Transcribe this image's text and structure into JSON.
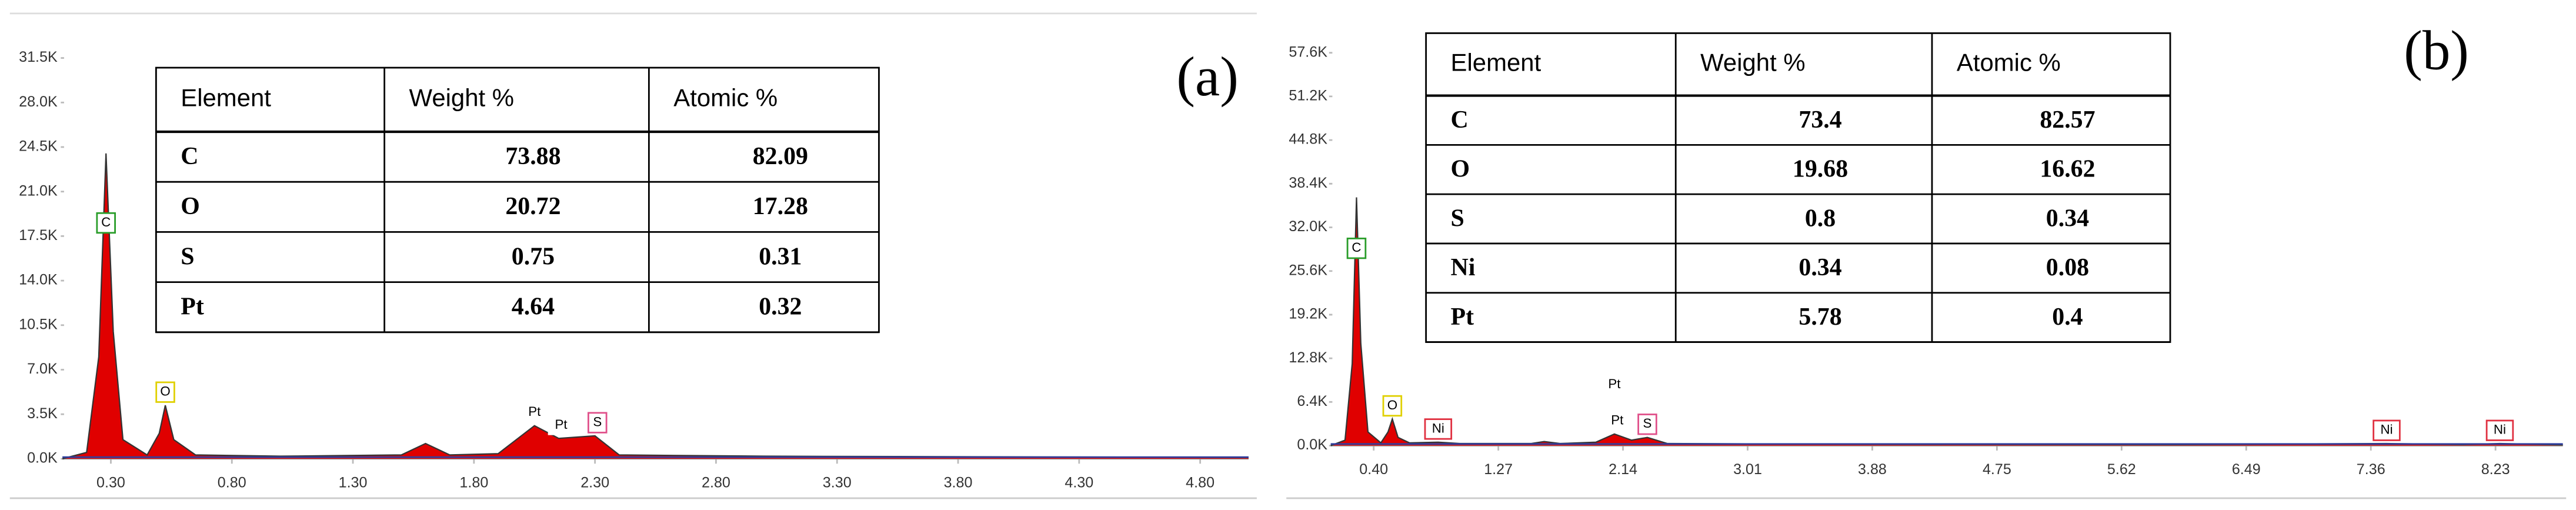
{
  "chart_data": [
    {
      "type": "area",
      "label": "(a)",
      "x": [
        0.1,
        0.2,
        0.25,
        0.28,
        0.31,
        0.35,
        0.45,
        0.5,
        0.525,
        0.56,
        0.65,
        1.0,
        1.5,
        1.6,
        1.7,
        1.9,
        2.05,
        2.15,
        2.3,
        2.4,
        3.0,
        4.0,
        5.0
      ],
      "values": [
        0,
        500,
        8000,
        24000,
        10000,
        1500,
        300,
        2000,
        4200,
        1500,
        300,
        200,
        300,
        1200,
        300,
        400,
        2600,
        1600,
        1800,
        300,
        200,
        150,
        100
      ],
      "color": "#e00000",
      "edge_color": "#333333",
      "xlim": [
        0.1,
        5.0
      ],
      "ylim": [
        0,
        35000
      ],
      "xticks": [
        {
          "value": 0.3,
          "label": "0.30"
        },
        {
          "value": 0.8,
          "label": "0.80"
        },
        {
          "value": 1.3,
          "label": "1.30"
        },
        {
          "value": 1.8,
          "label": "1.80"
        },
        {
          "value": 2.3,
          "label": "2.30"
        },
        {
          "value": 2.8,
          "label": "2.80"
        },
        {
          "value": 3.3,
          "label": "3.30"
        },
        {
          "value": 3.8,
          "label": "3.80"
        },
        {
          "value": 4.3,
          "label": "4.30"
        },
        {
          "value": 4.8,
          "label": "4.80"
        }
      ],
      "yticks": [
        {
          "value": 0,
          "label": "0.0K"
        },
        {
          "value": 3500,
          "label": "3.5K"
        },
        {
          "value": 7000,
          "label": "7.0K"
        },
        {
          "value": 10500,
          "label": "10.5K"
        },
        {
          "value": 14000,
          "label": "14.0K"
        },
        {
          "value": 17500,
          "label": "17.5K"
        },
        {
          "value": 21000,
          "label": "21.0K"
        },
        {
          "value": 24500,
          "label": "24.5K"
        },
        {
          "value": 28000,
          "label": "28.0K"
        },
        {
          "value": 31500,
          "label": "31.5K"
        }
      ],
      "markers": [
        {
          "label": "C",
          "x": 0.28,
          "y": 17500,
          "color": "#2a9d2a"
        },
        {
          "label": "O",
          "x": 0.525,
          "y": 4200,
          "color": "#e0d000"
        },
        {
          "label": "Pt",
          "x": 2.05,
          "y": 2600,
          "color": "none"
        },
        {
          "label": "Pt",
          "x": 2.16,
          "y": 1600,
          "color": "none"
        },
        {
          "label": "S",
          "x": 2.31,
          "y": 1800,
          "color": "#e0508a"
        }
      ],
      "table": {
        "columns": [
          "Element",
          "Weight %",
          "Atomic %"
        ],
        "rows": [
          [
            "C",
            "73.88",
            "82.09"
          ],
          [
            "O",
            "20.72",
            "17.28"
          ],
          [
            "S",
            "0.75",
            "0.31"
          ],
          [
            "Pt",
            "4.64",
            "0.32"
          ]
        ]
      }
    },
    {
      "type": "area",
      "label": "(b)",
      "x": [
        0.1,
        0.2,
        0.25,
        0.28,
        0.31,
        0.36,
        0.45,
        0.5,
        0.53,
        0.57,
        0.65,
        0.85,
        1.0,
        1.5,
        1.59,
        1.7,
        1.95,
        2.08,
        2.2,
        2.31,
        2.45,
        3.0,
        4.0,
        6.0,
        7.47,
        8.0,
        8.26,
        8.7
      ],
      "values": [
        0,
        800,
        12000,
        36400,
        15000,
        2000,
        400,
        2000,
        3900,
        1200,
        400,
        500,
        300,
        300,
        600,
        300,
        500,
        1700,
        800,
        1200,
        300,
        250,
        200,
        150,
        300,
        150,
        300,
        100
      ],
      "color": "#e00000",
      "edge_color": "#333333",
      "xlim": [
        0.1,
        8.7
      ],
      "ylim": [
        0,
        62400
      ],
      "xticks": [
        {
          "value": 0.4,
          "label": "0.40"
        },
        1.27,
        2.14,
        3.01,
        3.88,
        4.75,
        5.62,
        6.49,
        7.36,
        8.23
      ],
      "yticks": [
        {
          "value": 0,
          "label": "0.0K"
        },
        {
          "value": 6400,
          "label": "6.4K"
        },
        {
          "value": 12800,
          "label": "12.8K"
        },
        {
          "value": 19200,
          "label": "19.2K"
        },
        {
          "value": 25600,
          "label": "25.6K"
        },
        {
          "value": 32000,
          "label": "32.0K"
        },
        {
          "value": 38400,
          "label": "38.4K"
        },
        {
          "value": 44800,
          "label": "44.8K"
        },
        {
          "value": 51200,
          "label": "51.2K"
        },
        {
          "value": 57600,
          "label": "57.6K"
        }
      ],
      "markers": [
        {
          "label": "C",
          "x": 0.28,
          "y": 27000,
          "color": "#2a9d2a"
        },
        {
          "label": "O",
          "x": 0.53,
          "y": 3900,
          "color": "#e0d000"
        },
        {
          "label": "Ni",
          "x": 0.85,
          "y": 500,
          "color": "#e03040"
        },
        {
          "label": "Pt",
          "x": 2.08,
          "y": 7000,
          "color": "none"
        },
        {
          "label": "Pt",
          "x": 2.1,
          "y": 1700,
          "color": "none"
        },
        {
          "label": "S",
          "x": 2.31,
          "y": 1200,
          "color": "#e0508a"
        },
        {
          "label": "Ni",
          "x": 7.47,
          "y": 300,
          "color": "#e03040"
        },
        {
          "label": "Ni",
          "x": 8.26,
          "y": 300,
          "color": "#e03040"
        }
      ],
      "table": {
        "columns": [
          "Element",
          "Weight %",
          "Atomic %"
        ],
        "rows": [
          [
            "C",
            "73.4",
            "82.57"
          ],
          [
            "O",
            "19.68",
            "16.62"
          ],
          [
            "S",
            "0.8",
            "0.34"
          ],
          [
            "Ni",
            "0.34",
            "0.08"
          ],
          [
            "Pt",
            "5.78",
            "0.4"
          ]
        ]
      }
    }
  ]
}
